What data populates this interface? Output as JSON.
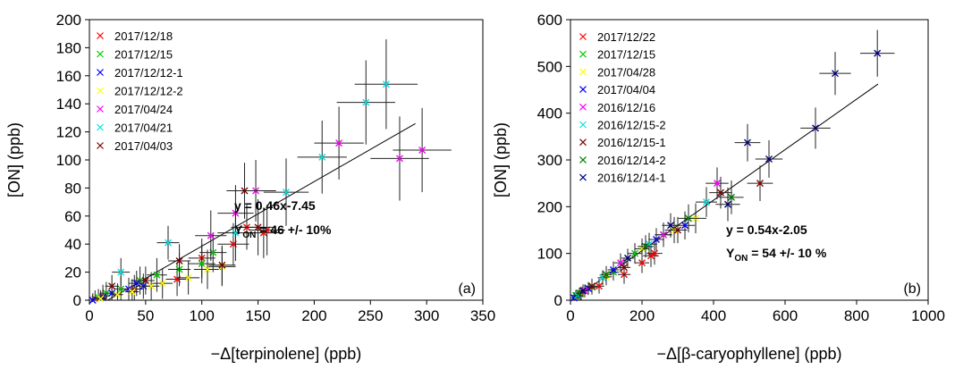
{
  "chart_data": [
    {
      "type": "scatter",
      "panel_label": "(a)",
      "xlabel": "−Δ[terpinolene] (ppb)",
      "ylabel": "[ON] (ppb)",
      "xlim": [
        0,
        350
      ],
      "ylim": [
        0,
        200
      ],
      "xticks": [
        "0",
        "50",
        "100",
        "150",
        "200",
        "250",
        "300",
        "350"
      ],
      "yticks": [
        "0",
        "20",
        "40",
        "60",
        "80",
        "100",
        "120",
        "140",
        "160",
        "180",
        "200"
      ],
      "legend_position": "top-left",
      "equation": "y = 0.46x-7.45",
      "yield_prefix": "Y",
      "yield_sub": "ON",
      "yield_value": " = 46 +/- 10%",
      "fit": {
        "slope": 0.46,
        "intercept": -7.45,
        "x_range": [
          0,
          290
        ]
      },
      "series": [
        {
          "name": "2017/12/18",
          "color": "#ff0000",
          "points": [
            [
              5,
              1,
              3,
              6
            ],
            [
              12,
              3,
              5,
              8
            ],
            [
              40,
              8,
              8,
              10
            ],
            [
              78,
              15,
              10,
              12
            ],
            [
              100,
              30,
              12,
              14
            ],
            [
              128,
              40,
              14,
              15
            ],
            [
              140,
              52,
              14,
              16
            ],
            [
              155,
              48,
              16,
              18
            ],
            [
              158,
              50,
              16,
              18
            ]
          ]
        },
        {
          "name": "2017/12/15",
          "color": "#00cc00",
          "points": [
            [
              8,
              2,
              4,
              6
            ],
            [
              15,
              5,
              5,
              8
            ],
            [
              28,
              8,
              6,
              9
            ],
            [
              45,
              14,
              8,
              10
            ],
            [
              60,
              18,
              9,
              12
            ],
            [
              80,
              22,
              10,
              12
            ],
            [
              100,
              26,
              12,
              14
            ],
            [
              110,
              34,
              12,
              14
            ]
          ]
        },
        {
          "name": "2017/12/12-1",
          "color": "#0000ff",
          "points": [
            [
              3,
              0,
              3,
              5
            ],
            [
              12,
              2,
              4,
              6
            ],
            [
              20,
              5,
              5,
              7
            ],
            [
              35,
              8,
              6,
              8
            ],
            [
              42,
              12,
              7,
              9
            ],
            [
              48,
              10,
              7,
              9
            ]
          ]
        },
        {
          "name": "2017/12/12-2",
          "color": "#ffff00",
          "points": [
            [
              10,
              1,
              4,
              6
            ],
            [
              25,
              4,
              5,
              8
            ],
            [
              38,
              6,
              6,
              9
            ],
            [
              55,
              10,
              8,
              10
            ],
            [
              65,
              12,
              9,
              11
            ],
            [
              88,
              16,
              10,
              12
            ],
            [
              105,
              22,
              12,
              14
            ],
            [
              118,
              24,
              12,
              14
            ]
          ]
        },
        {
          "name": "2017/04/24",
          "color": "#ff00ff",
          "points": [
            [
              108,
              46,
              14,
              18
            ],
            [
              130,
              62,
              16,
              20
            ],
            [
              148,
              78,
              18,
              22
            ],
            [
              222,
              112,
              22,
              26
            ],
            [
              276,
              101,
              26,
              30
            ],
            [
              296,
              107,
              26,
              30
            ]
          ]
        },
        {
          "name": "2017/04/21",
          "color": "#00e5e5",
          "points": [
            [
              28,
              20,
              8,
              10
            ],
            [
              70,
              41,
              10,
              12
            ],
            [
              130,
              48,
              16,
              20
            ],
            [
              175,
              77,
              20,
              24
            ],
            [
              207,
              102,
              22,
              26
            ],
            [
              246,
              141,
              26,
              30
            ],
            [
              264,
              154,
              28,
              32
            ]
          ]
        },
        {
          "name": "2017/04/03",
          "color": "#800000",
          "points": [
            [
              20,
              10,
              6,
              8
            ],
            [
              50,
              14,
              8,
              10
            ],
            [
              80,
              28,
              10,
              12
            ],
            [
              118,
              25,
              12,
              14
            ],
            [
              138,
              78,
              16,
              20
            ],
            [
              150,
              52,
              16,
              20
            ]
          ]
        }
      ]
    },
    {
      "type": "scatter",
      "panel_label": "(b)",
      "xlabel": "−Δ[β-caryophyllene] (ppb)",
      "ylabel": "[ON] (ppb)",
      "xlim": [
        0,
        1000
      ],
      "ylim": [
        0,
        600
      ],
      "xticks": [
        "0",
        "200",
        "400",
        "600",
        "800",
        "1000"
      ],
      "yticks": [
        "0",
        "100",
        "200",
        "300",
        "400",
        "500",
        "600"
      ],
      "legend_position": "top-left",
      "equation": "y = 0.54x-2.05",
      "yield_prefix": "Y",
      "yield_sub": "ON",
      "yield_value": " = 54 +/- 10 %",
      "fit": {
        "slope": 0.54,
        "intercept": -2.05,
        "x_range": [
          0,
          860
        ]
      },
      "series": [
        {
          "name": "2017/12/22",
          "color": "#ff0000",
          "points": [
            [
              20,
              8,
              10,
              12
            ],
            [
              80,
              30,
              14,
              16
            ],
            [
              150,
              55,
              18,
              20
            ],
            [
              200,
              80,
              20,
              22
            ],
            [
              225,
              95,
              22,
              24
            ],
            [
              235,
              100,
              22,
              24
            ]
          ]
        },
        {
          "name": "2017/12/15",
          "color": "#00cc00",
          "points": [
            [
              15,
              10,
              10,
              12
            ],
            [
              60,
              28,
              14,
              16
            ],
            [
              120,
              60,
              16,
              18
            ],
            [
              180,
              100,
              20,
              22
            ],
            [
              260,
              140,
              24,
              26
            ]
          ]
        },
        {
          "name": "2017/04/28",
          "color": "#ffff00",
          "points": [
            [
              30,
              15,
              12,
              14
            ],
            [
              100,
              50,
              16,
              18
            ],
            [
              200,
              110,
              20,
              22
            ],
            [
              290,
              150,
              26,
              28
            ],
            [
              350,
              175,
              30,
              32
            ]
          ]
        },
        {
          "name": "2017/04/04",
          "color": "#0000ff",
          "points": [
            [
              10,
              5,
              10,
              12
            ],
            [
              50,
              25,
              12,
              14
            ],
            [
              120,
              65,
              16,
              18
            ],
            [
              240,
              130,
              22,
              24
            ],
            [
              320,
              160,
              28,
              30
            ]
          ]
        },
        {
          "name": "2016/12/16",
          "color": "#ff00ff",
          "points": [
            [
              40,
              20,
              12,
              14
            ],
            [
              140,
              80,
              18,
              20
            ],
            [
              260,
              140,
              24,
              26
            ],
            [
              410,
              250,
              32,
              34
            ]
          ]
        },
        {
          "name": "2016/12/15-2",
          "color": "#00e5e5",
          "points": [
            [
              20,
              10,
              10,
              12
            ],
            [
              90,
              48,
              14,
              16
            ],
            [
              220,
              120,
              22,
              24
            ],
            [
              380,
              210,
              30,
              32
            ]
          ]
        },
        {
          "name": "2016/12/15-1",
          "color": "#800000",
          "points": [
            [
              60,
              30,
              14,
              16
            ],
            [
              150,
              70,
              18,
              20
            ],
            [
              300,
              150,
              26,
              28
            ],
            [
              420,
              230,
              32,
              34
            ],
            [
              530,
              250,
              36,
              38
            ]
          ]
        },
        {
          "name": "2016/12/14-2",
          "color": "#008000",
          "points": [
            [
              25,
              15,
              10,
              12
            ],
            [
              100,
              55,
              16,
              18
            ],
            [
              210,
              115,
              22,
              24
            ],
            [
              330,
              175,
              28,
              30
            ],
            [
              450,
              220,
              34,
              36
            ]
          ]
        },
        {
          "name": "2016/12/14-1",
          "color": "#000080",
          "points": [
            [
              35,
              20,
              12,
              14
            ],
            [
              160,
              90,
              18,
              20
            ],
            [
              280,
              160,
              24,
              26
            ],
            [
              440,
              205,
              34,
              36
            ],
            [
              495,
              337,
              36,
              40
            ],
            [
              555,
              302,
              38,
              40
            ],
            [
              685,
              368,
              42,
              44
            ],
            [
              740,
              485,
              44,
              46
            ],
            [
              858,
              528,
              48,
              50
            ]
          ]
        }
      ]
    }
  ]
}
